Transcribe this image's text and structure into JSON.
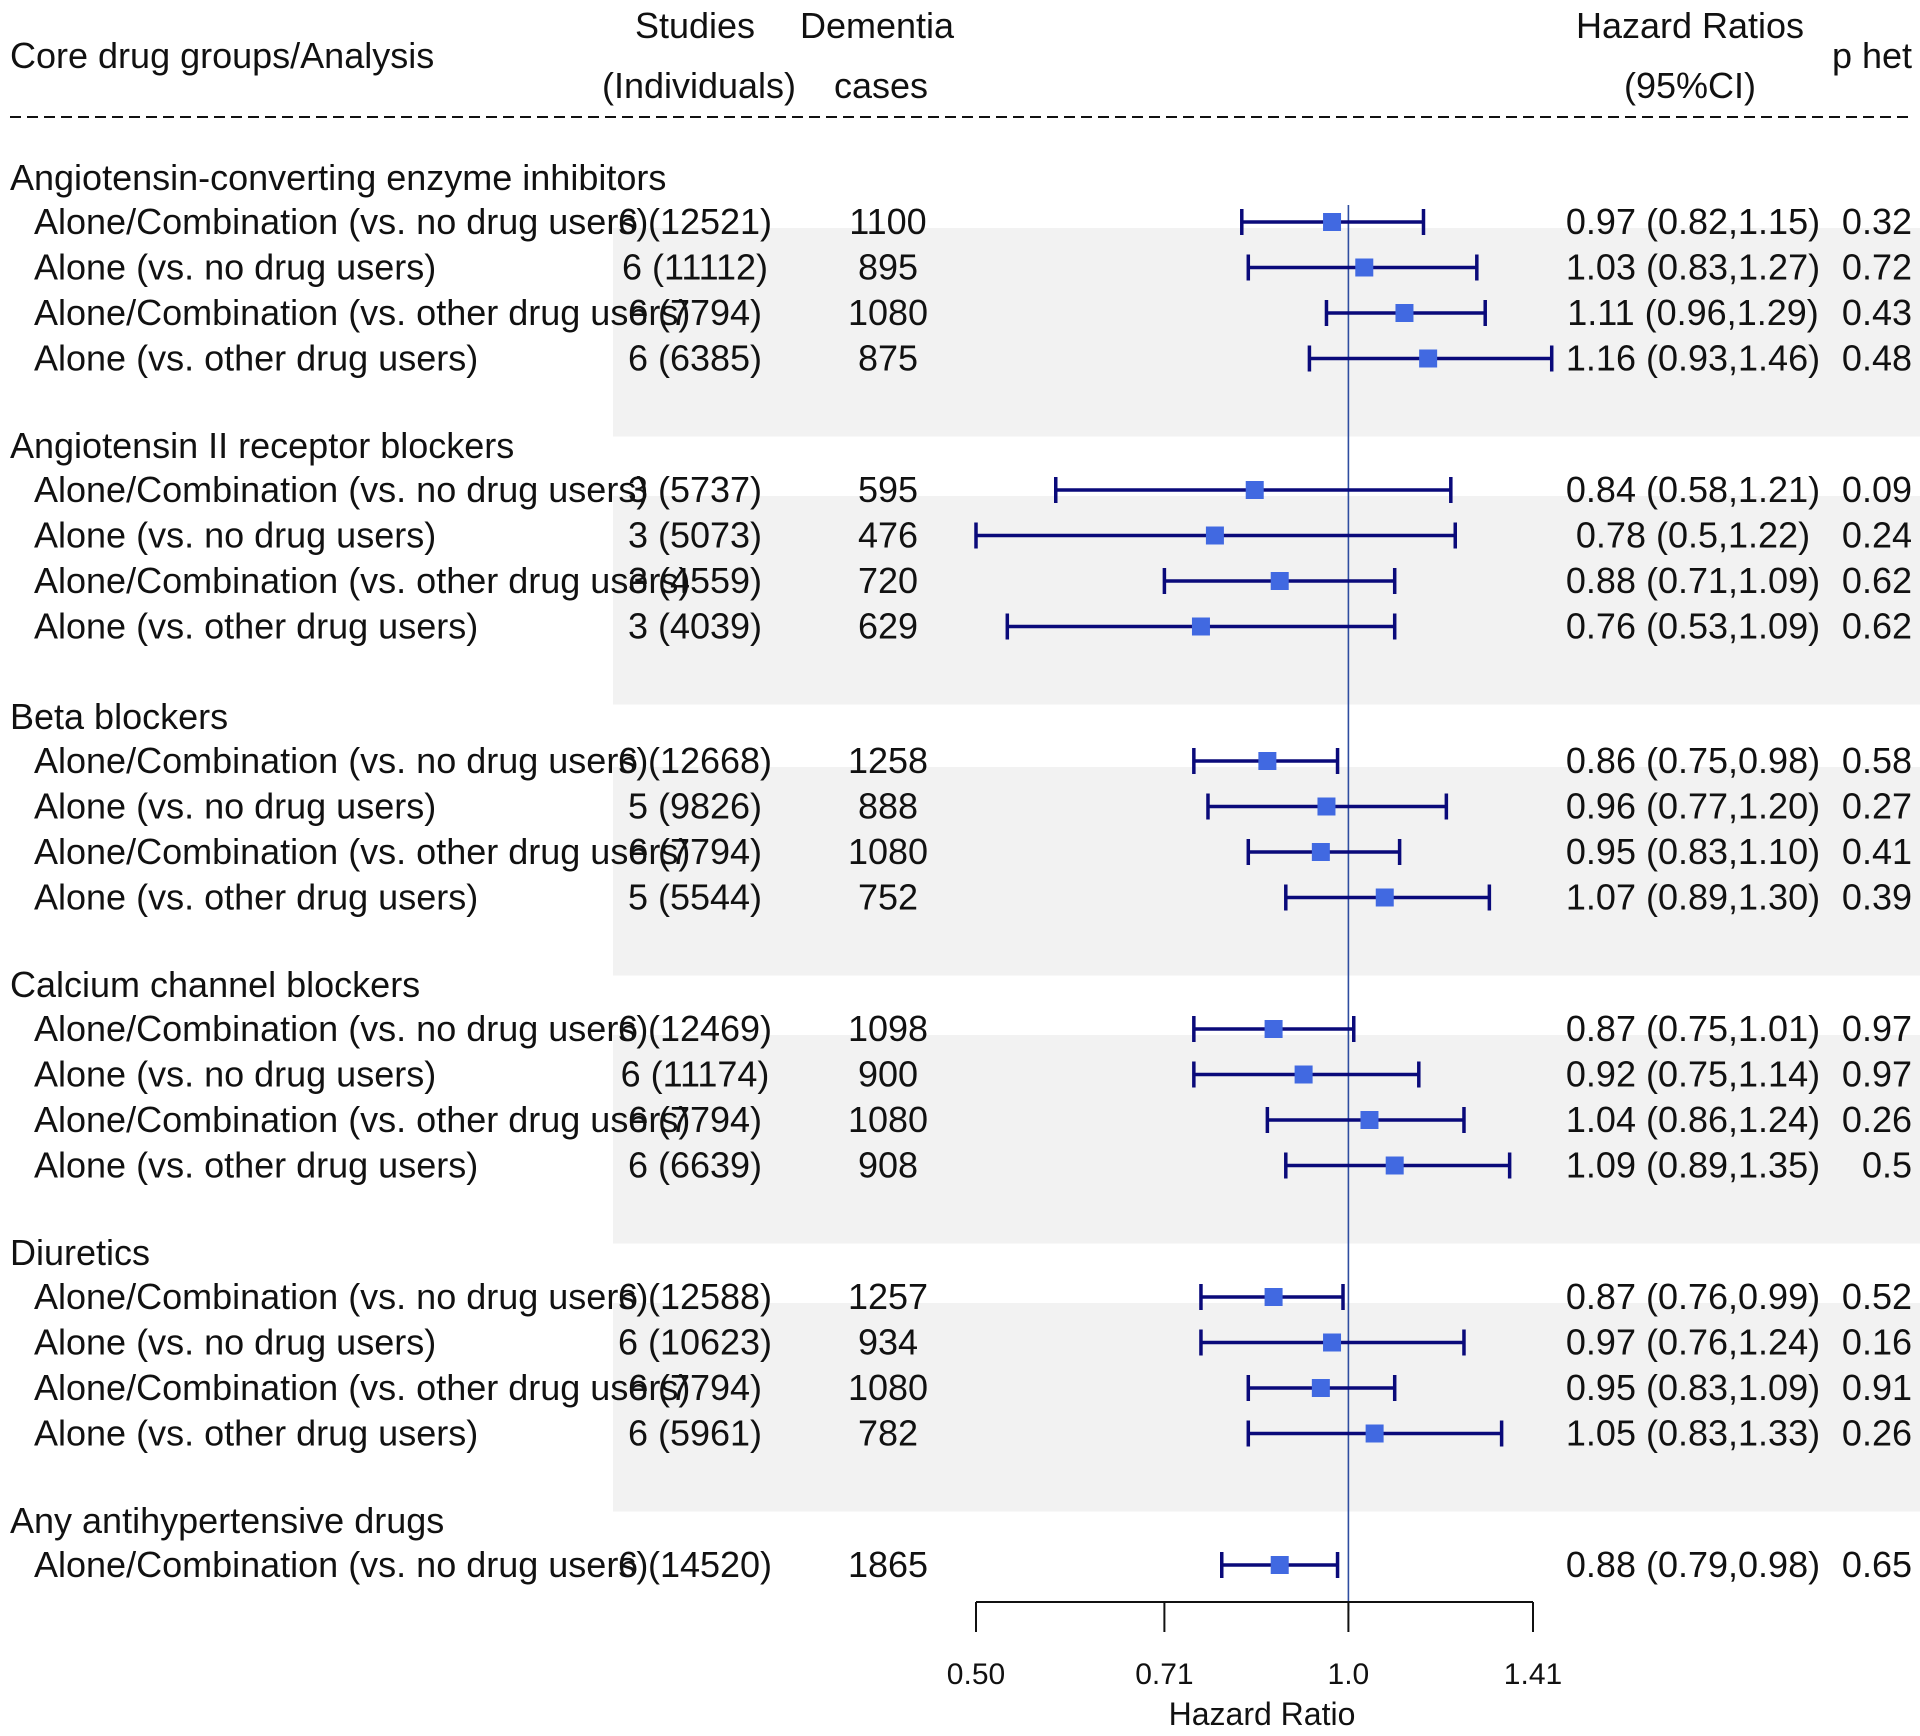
{
  "headers": {
    "analysis": "Core drug groups/Analysis",
    "studies_line1": "Studies",
    "studies_line2": "(Individuals)",
    "cases_line1": "Dementia",
    "cases_line2": "cases",
    "hr_line1": "Hazard Ratios",
    "hr_line2": "(95%CI)",
    "phet": "p het"
  },
  "colors": {
    "marker": "#4169E1",
    "ci_line": "#0A0A7A",
    "reference_line": "#2E4DA0",
    "band": "#F2F2F2",
    "text": "#111111"
  },
  "chart_data": {
    "type": "forest",
    "title": "",
    "xlabel": "Hazard Ratio",
    "x_scale": "log",
    "xlim": [
      0.5,
      1.41
    ],
    "ticks": [
      {
        "value": 0.5,
        "label": "0.50"
      },
      {
        "value": 0.71,
        "label": "0.71"
      },
      {
        "value": 1.0,
        "label": "1.0"
      },
      {
        "value": 1.41,
        "label": "1.41"
      }
    ],
    "reference_value": 1.0,
    "groups": [
      {
        "name": "Angiotensin-converting enzyme inhibitors",
        "rows": [
          {
            "label": "Alone/Combination (vs. no drug users)",
            "studies": "6 (12521)",
            "cases": "1100",
            "hr": 0.97,
            "lo": 0.82,
            "hi": 1.15,
            "hr_text": "0.97 (0.82,1.15)",
            "phet": "0.32"
          },
          {
            "label": "Alone (vs. no drug users)",
            "studies": "6 (11112)",
            "cases": "895",
            "hr": 1.03,
            "lo": 0.83,
            "hi": 1.27,
            "hr_text": "1.03 (0.83,1.27)",
            "phet": "0.72"
          },
          {
            "label": "Alone/Combination (vs. other drug users)",
            "studies": "6 (7794)",
            "cases": "1080",
            "hr": 1.11,
            "lo": 0.96,
            "hi": 1.29,
            "hr_text": "1.11 (0.96,1.29)",
            "phet": "0.43"
          },
          {
            "label": "Alone (vs. other drug users)",
            "studies": "6 (6385)",
            "cases": "875",
            "hr": 1.16,
            "lo": 0.93,
            "hi": 1.46,
            "hr_text": "1.16 (0.93,1.46)",
            "phet": "0.48"
          }
        ]
      },
      {
        "name": "Angiotensin II receptor blockers",
        "rows": [
          {
            "label": "Alone/Combination (vs. no drug users)",
            "studies": "3 (5737)",
            "cases": "595",
            "hr": 0.84,
            "lo": 0.58,
            "hi": 1.21,
            "hr_text": "0.84 (0.58,1.21)",
            "phet": "0.09"
          },
          {
            "label": "Alone (vs. no drug users)",
            "studies": "3 (5073)",
            "cases": "476",
            "hr": 0.78,
            "lo": 0.5,
            "hi": 1.22,
            "hr_text": "0.78 (0.5,1.22)",
            "phet": "0.24"
          },
          {
            "label": "Alone/Combination (vs. other drug users)",
            "studies": "3 (4559)",
            "cases": "720",
            "hr": 0.88,
            "lo": 0.71,
            "hi": 1.09,
            "hr_text": "0.88 (0.71,1.09)",
            "phet": "0.62"
          },
          {
            "label": "Alone (vs. other drug users)",
            "studies": "3 (4039)",
            "cases": "629",
            "hr": 0.76,
            "lo": 0.53,
            "hi": 1.09,
            "hr_text": "0.76 (0.53,1.09)",
            "phet": "0.62"
          }
        ]
      },
      {
        "name": "Beta blockers",
        "rows": [
          {
            "label": "Alone/Combination (vs. no drug users)",
            "studies": "6 (12668)",
            "cases": "1258",
            "hr": 0.86,
            "lo": 0.75,
            "hi": 0.98,
            "hr_text": "0.86 (0.75,0.98)",
            "phet": "0.58"
          },
          {
            "label": "Alone (vs. no drug users)",
            "studies": "5 (9826)",
            "cases": "888",
            "hr": 0.96,
            "lo": 0.77,
            "hi": 1.2,
            "hr_text": "0.96 (0.77,1.20)",
            "phet": "0.27"
          },
          {
            "label": "Alone/Combination (vs. other drug users)",
            "studies": "6 (7794)",
            "cases": "1080",
            "hr": 0.95,
            "lo": 0.83,
            "hi": 1.1,
            "hr_text": "0.95 (0.83,1.10)",
            "phet": "0.41"
          },
          {
            "label": "Alone (vs. other drug users)",
            "studies": "5 (5544)",
            "cases": "752",
            "hr": 1.07,
            "lo": 0.89,
            "hi": 1.3,
            "hr_text": "1.07 (0.89,1.30)",
            "phet": "0.39"
          }
        ]
      },
      {
        "name": "Calcium channel blockers",
        "rows": [
          {
            "label": "Alone/Combination (vs. no drug users)",
            "studies": "6 (12469)",
            "cases": "1098",
            "hr": 0.87,
            "lo": 0.75,
            "hi": 1.01,
            "hr_text": "0.87 (0.75,1.01)",
            "phet": "0.97"
          },
          {
            "label": "Alone (vs. no drug users)",
            "studies": "6 (11174)",
            "cases": "900",
            "hr": 0.92,
            "lo": 0.75,
            "hi": 1.14,
            "hr_text": "0.92 (0.75,1.14)",
            "phet": "0.97"
          },
          {
            "label": "Alone/Combination (vs. other drug users)",
            "studies": "6 (7794)",
            "cases": "1080",
            "hr": 1.04,
            "lo": 0.86,
            "hi": 1.24,
            "hr_text": "1.04 (0.86,1.24)",
            "phet": "0.26"
          },
          {
            "label": "Alone (vs. other drug users)",
            "studies": "6 (6639)",
            "cases": "908",
            "hr": 1.09,
            "lo": 0.89,
            "hi": 1.35,
            "hr_text": "1.09 (0.89,1.35)",
            "phet": "0.5"
          }
        ]
      },
      {
        "name": "Diuretics",
        "rows": [
          {
            "label": "Alone/Combination (vs. no drug users)",
            "studies": "6 (12588)",
            "cases": "1257",
            "hr": 0.87,
            "lo": 0.76,
            "hi": 0.99,
            "hr_text": "0.87 (0.76,0.99)",
            "phet": "0.52"
          },
          {
            "label": "Alone (vs. no drug users)",
            "studies": "6 (10623)",
            "cases": "934",
            "hr": 0.97,
            "lo": 0.76,
            "hi": 1.24,
            "hr_text": "0.97 (0.76,1.24)",
            "phet": "0.16"
          },
          {
            "label": "Alone/Combination (vs. other drug users)",
            "studies": "6 (7794)",
            "cases": "1080",
            "hr": 0.95,
            "lo": 0.83,
            "hi": 1.09,
            "hr_text": "0.95 (0.83,1.09)",
            "phet": "0.91"
          },
          {
            "label": "Alone (vs. other drug users)",
            "studies": "6 (5961)",
            "cases": "782",
            "hr": 1.05,
            "lo": 0.83,
            "hi": 1.33,
            "hr_text": "1.05 (0.83,1.33)",
            "phet": "0.26"
          }
        ]
      },
      {
        "name": "Any antihypertensive drugs",
        "rows": [
          {
            "label": "Alone/Combination (vs. no drug users)",
            "studies": "6 (14520)",
            "cases": "1865",
            "hr": 0.88,
            "lo": 0.79,
            "hi": 0.98,
            "hr_text": "0.88 (0.79,0.98)",
            "phet": "0.65"
          }
        ]
      }
    ]
  }
}
